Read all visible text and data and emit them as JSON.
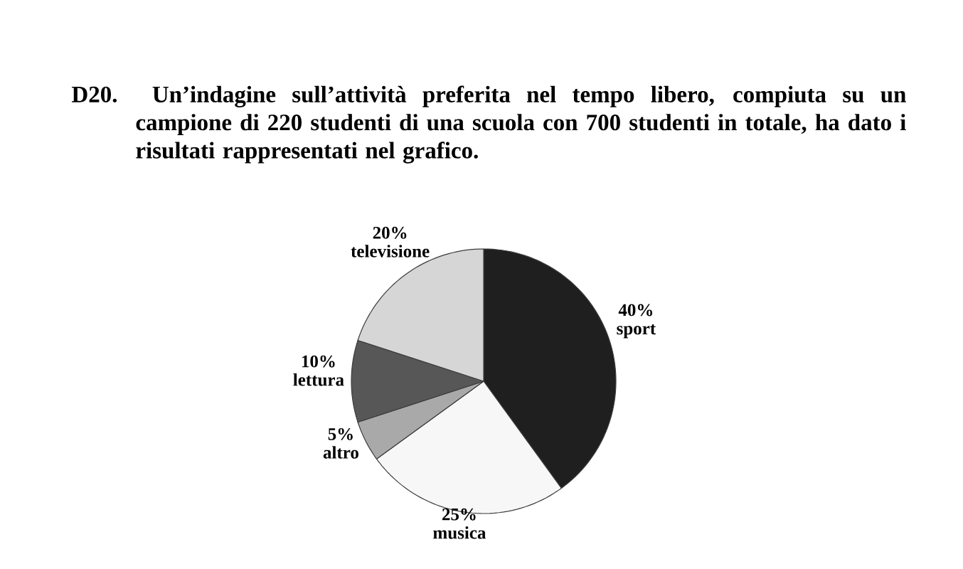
{
  "chart_data": {
    "type": "pie",
    "title": "D20. Un’indagine sull’attività preferita nel tempo libero, compiuta su un campione di 220 studenti di una scuola con 700 studenti in totale, ha dato i risultati rappresentati nel grafico.",
    "categories": [
      "sport",
      "musica",
      "altro",
      "lettura",
      "televisione"
    ],
    "values": [
      40,
      25,
      5,
      10,
      20
    ],
    "colors": [
      "#1f1f1f",
      "#f7f7f7",
      "#a9a9a9",
      "#575757",
      "#d6d6d6"
    ],
    "value_labels": [
      "40%",
      "25%",
      "5%",
      "10%",
      "20%"
    ]
  }
}
